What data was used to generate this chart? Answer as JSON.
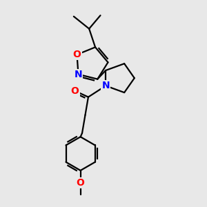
{
  "background_color": "#e8e8e8",
  "bond_color": "#000000",
  "atom_colors": {
    "O": "#ff0000",
    "N": "#0000ff",
    "C": "#000000"
  },
  "bond_width": 1.6,
  "font_size_atom": 10,
  "figsize": [
    3.0,
    3.0
  ],
  "dpi": 100,
  "xlim": [
    0,
    10
  ],
  "ylim": [
    0,
    10
  ]
}
